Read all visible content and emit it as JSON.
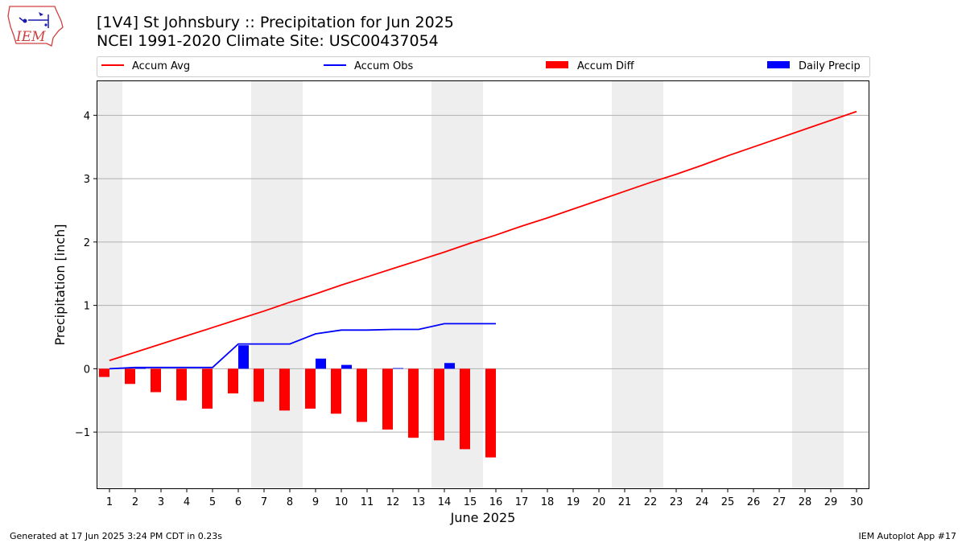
{
  "header": {
    "title_line1": "[1V4] St Johnsbury :: Precipitation for Jun 2025",
    "title_line2": "NCEI 1991-2020 Climate Site: USC00437054"
  },
  "logo": {
    "text": "IEM"
  },
  "footer": {
    "left": "Generated at 17 Jun 2025 3:24 PM CDT in 0.23s",
    "right": "IEM Autoplot App #17"
  },
  "colors": {
    "avg": "#ff0000",
    "obs": "#0000ff",
    "diff": "#ff0000",
    "daily": "#0000ff",
    "weekend_shade": "#eeeeee",
    "grid": "#b0b0b0"
  },
  "chart_data": {
    "type": "bar",
    "title": "[1V4] St Johnsbury :: Precipitation for Jun 2025",
    "subtitle": "NCEI 1991-2020 Climate Site: USC00437054",
    "xlabel": "June 2025",
    "ylabel": "Precipitation [inch]",
    "xlim": [
      0.5,
      30.5
    ],
    "ylim": [
      -1.9,
      4.55
    ],
    "x_ticks": [
      1,
      2,
      3,
      4,
      5,
      6,
      7,
      8,
      9,
      10,
      11,
      12,
      13,
      14,
      15,
      16,
      17,
      18,
      19,
      20,
      21,
      22,
      23,
      24,
      25,
      26,
      27,
      28,
      29,
      30
    ],
    "y_ticks": [
      -1,
      0,
      1,
      2,
      3,
      4
    ],
    "y_tick_labels": [
      "−1",
      "0",
      "1",
      "2",
      "3",
      "4"
    ],
    "grid": "horizontal",
    "legend_position": "top",
    "shaded_day_ranges": [
      [
        0.5,
        1.5
      ],
      [
        6.5,
        8.5
      ],
      [
        13.5,
        15.5
      ],
      [
        20.5,
        22.5
      ],
      [
        27.5,
        29.5
      ]
    ],
    "series": [
      {
        "name": "Accum Avg",
        "kind": "line",
        "x": [
          1,
          2,
          3,
          4,
          5,
          6,
          7,
          8,
          9,
          10,
          11,
          12,
          13,
          14,
          15,
          16,
          17,
          18,
          19,
          20,
          21,
          22,
          23,
          24,
          25,
          26,
          27,
          28,
          29,
          30
        ],
        "values": [
          0.13,
          0.26,
          0.39,
          0.52,
          0.65,
          0.78,
          0.91,
          1.05,
          1.18,
          1.32,
          1.45,
          1.58,
          1.71,
          1.84,
          1.98,
          2.11,
          2.25,
          2.38,
          2.52,
          2.66,
          2.8,
          2.94,
          3.07,
          3.21,
          3.36,
          3.5,
          3.64,
          3.78,
          3.92,
          4.06
        ]
      },
      {
        "name": "Accum Obs",
        "kind": "line",
        "x": [
          1,
          2,
          3,
          4,
          5,
          6,
          7,
          8,
          9,
          10,
          11,
          12,
          13,
          14,
          15,
          16
        ],
        "values": [
          0.0,
          0.02,
          0.02,
          0.02,
          0.02,
          0.39,
          0.39,
          0.39,
          0.55,
          0.61,
          0.61,
          0.62,
          0.62,
          0.71,
          0.71,
          0.71
        ]
      },
      {
        "name": "Accum Diff",
        "kind": "bar",
        "x": [
          1,
          2,
          3,
          4,
          5,
          6,
          7,
          8,
          9,
          10,
          11,
          12,
          13,
          14,
          15,
          16
        ],
        "values": [
          -0.13,
          -0.24,
          -0.37,
          -0.5,
          -0.63,
          -0.39,
          -0.52,
          -0.66,
          -0.63,
          -0.71,
          -0.84,
          -0.96,
          -1.09,
          -1.13,
          -1.27,
          -1.4
        ]
      },
      {
        "name": "Daily Precip",
        "kind": "bar",
        "x": [
          1,
          2,
          3,
          4,
          5,
          6,
          7,
          8,
          9,
          10,
          11,
          12,
          13,
          14,
          15,
          16
        ],
        "values": [
          0.0,
          0.02,
          0.0,
          0.0,
          0.0,
          0.37,
          0.0,
          0.0,
          0.16,
          0.06,
          0.0,
          0.01,
          0.0,
          0.09,
          0.0,
          0.0
        ]
      }
    ]
  }
}
